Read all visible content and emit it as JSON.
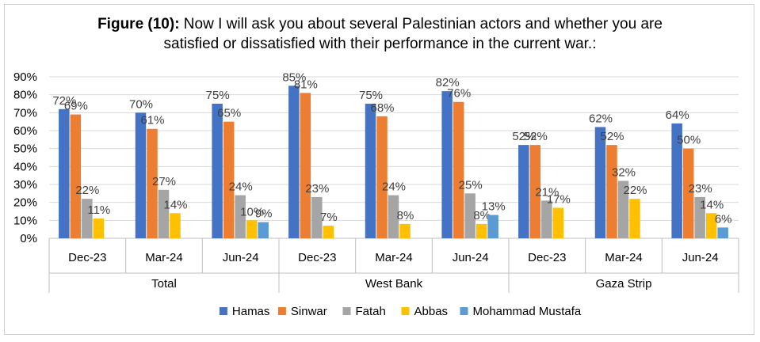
{
  "title": {
    "bold": "Figure (10):",
    "line1": " Now I will ask you about several Palestinian actors and whether you are",
    "line2": "satisfied or dissatisfied with their performance in the current war.:"
  },
  "chart_data": {
    "type": "bar",
    "groups": [
      "Total",
      "West Bank",
      "Gaza Strip"
    ],
    "categories": [
      "Dec-23",
      "Mar-24",
      "Jun-24",
      "Dec-23",
      "Mar-24",
      "Jun-24",
      "Dec-23",
      "Mar-24",
      "Jun-24"
    ],
    "y_ticks": [
      "0%",
      "10%",
      "20%",
      "30%",
      "40%",
      "50%",
      "60%",
      "70%",
      "80%",
      "90%"
    ],
    "ylim": [
      0,
      90
    ],
    "grid": true,
    "legend_position": "bottom",
    "series": [
      {
        "name": "Hamas",
        "color": "#4472C4",
        "values": [
          72,
          70,
          75,
          85,
          75,
          82,
          52,
          62,
          64
        ],
        "labels": [
          "72%",
          "70%",
          "75%",
          "85%",
          "75%",
          "82%",
          "52%",
          "62%",
          "64%"
        ]
      },
      {
        "name": "Sinwar",
        "color": "#ED7D31",
        "values": [
          69,
          61,
          65,
          81,
          68,
          76,
          52,
          52,
          50
        ],
        "labels": [
          "69%",
          "61%",
          "65%",
          "81%",
          "68%",
          "76%",
          "52%",
          "52%",
          "50%"
        ]
      },
      {
        "name": "Fatah",
        "color": "#A5A5A5",
        "values": [
          22,
          27,
          24,
          23,
          24,
          25,
          21,
          32,
          23
        ],
        "labels": [
          "22%",
          "27%",
          "24%",
          "23%",
          "24%",
          "25%",
          "21%",
          "32%",
          "23%"
        ]
      },
      {
        "name": "Abbas",
        "color": "#FFC000",
        "values": [
          11,
          14,
          10,
          7,
          8,
          8,
          17,
          22,
          14
        ],
        "labels": [
          "11%",
          "14%",
          "10%",
          "7%",
          "8%",
          "8%",
          "17%",
          "22%",
          "14%"
        ]
      },
      {
        "name": "Mohammad Mustafa",
        "color": "#5B9BD5",
        "values": [
          null,
          null,
          9,
          null,
          null,
          13,
          null,
          null,
          6
        ],
        "labels": [
          null,
          null,
          "9%",
          null,
          null,
          "13%",
          null,
          null,
          "6%"
        ]
      }
    ]
  }
}
